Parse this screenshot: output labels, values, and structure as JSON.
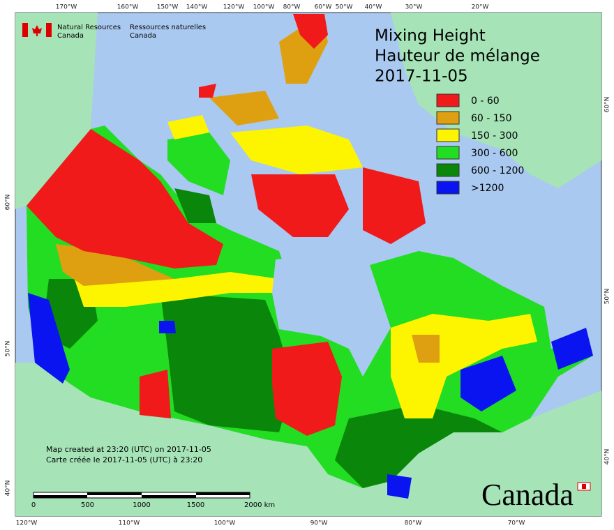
{
  "header": {
    "title": [
      "Mixing Height",
      "Hauteur de mélange",
      "2017-11-05"
    ]
  },
  "legend": [
    {
      "label": "0 - 60",
      "color": "#f01a1a"
    },
    {
      "label": "60 - 150",
      "color": "#dea010"
    },
    {
      "label": "150 - 300",
      "color": "#fdf500"
    },
    {
      "label": "300 - 600",
      "color": "#22dd22"
    },
    {
      "label": "600 - 1200",
      "color": "#0a870a"
    },
    {
      "label": ">1200",
      "color": "#0a14f0"
    }
  ],
  "agency": {
    "en": [
      "Natural Resources",
      "Canada"
    ],
    "fr": [
      "Ressources naturelles",
      "Canada"
    ]
  },
  "graticule": {
    "top": [
      "170°W",
      "160°W",
      "150°W",
      "140°W",
      "120°W",
      "100°W",
      "80°W",
      "60°W",
      "50°W",
      "40°W",
      "30°W",
      "20°W"
    ],
    "bottom": [
      "120°W",
      "110°W",
      "100°W",
      "90°W",
      "80°W",
      "70°W"
    ],
    "left": [
      "60°N",
      "50°N",
      "40°N"
    ],
    "right": [
      "60°N",
      "50°N",
      "40°N"
    ]
  },
  "notes": [
    "Map created at 23:20 (UTC) on 2017-11-05",
    "Carte créée le 2017-11-05 (UTC) à 23:20"
  ],
  "scale": [
    "0",
    "500",
    "1000",
    "1500",
    "2000 km"
  ],
  "wordmark": "Canada"
}
